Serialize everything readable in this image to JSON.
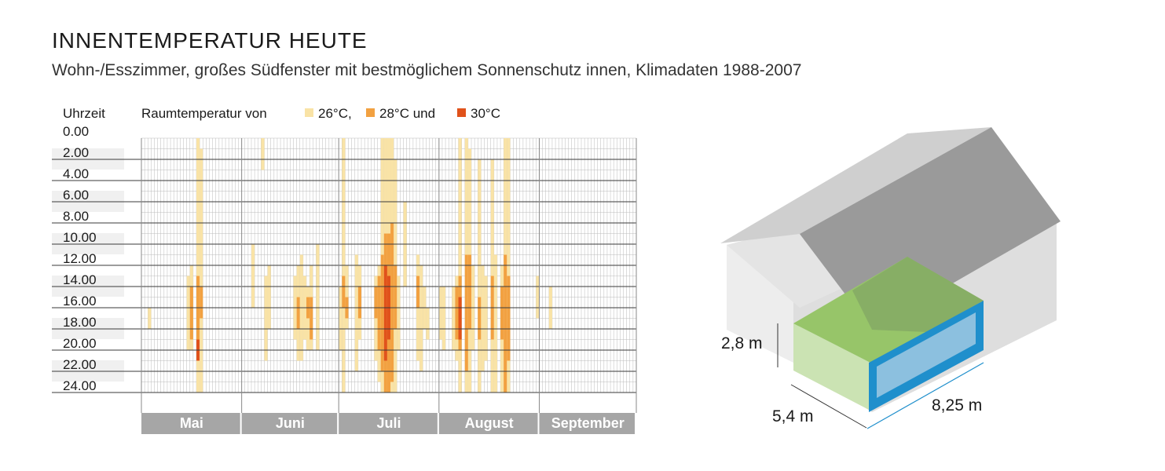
{
  "title": "INNENTEMPERATUR HEUTE",
  "subtitle": "Wohn-/Esszimmer, großes Südfenster mit bestmöglichem Sonnenschutz innen, Klimadaten 1988-2007",
  "colors": {
    "t26": "#f9e3a6",
    "t28": "#f2a141",
    "t30": "#e0521b",
    "month_bar": "#a6a6a6",
    "grid_minor": "#bbbbbb",
    "grid_major": "#3a3a3a"
  },
  "chart_data": {
    "type": "heatmap",
    "y_axis_label": "Uhrzeit",
    "y_ticks": [
      "0.00",
      "2.00",
      "4.00",
      "6.00",
      "8.00",
      "10.00",
      "12.00",
      "14.00",
      "16.00",
      "18.00",
      "20.00",
      "22.00",
      "24.00"
    ],
    "legend": {
      "prefix": "Raumtemperatur von",
      "items": [
        {
          "label": "26°C,",
          "color_key": "t26"
        },
        {
          "label": "28°C und",
          "color_key": "t28"
        },
        {
          "label": "30°C",
          "color_key": "t30"
        }
      ]
    },
    "months": [
      {
        "name": "Mai",
        "days": 31
      },
      {
        "name": "Juni",
        "days": 30
      },
      {
        "name": "Juli",
        "days": 31
      },
      {
        "name": "August",
        "days": 31
      },
      {
        "name": "September",
        "days": 30
      }
    ],
    "levels": {
      "1": "26°C",
      "2": "28°C",
      "3": "30°C"
    },
    "cells": [
      [
        2,
        16,
        18,
        1
      ],
      [
        14,
        13,
        20,
        1
      ],
      [
        15,
        12,
        20,
        1
      ],
      [
        15,
        14,
        19,
        2
      ],
      [
        17,
        0,
        24,
        1
      ],
      [
        17,
        13,
        21,
        2
      ],
      [
        17,
        19,
        21,
        3
      ],
      [
        18,
        1,
        24,
        1
      ],
      [
        18,
        14,
        17,
        2
      ],
      [
        34,
        10,
        16,
        1
      ],
      [
        37,
        0,
        3,
        1
      ],
      [
        38,
        13,
        21,
        1
      ],
      [
        39,
        12,
        18,
        1
      ],
      [
        47,
        13,
        19,
        1
      ],
      [
        48,
        12,
        21,
        1
      ],
      [
        48,
        15,
        18,
        2
      ],
      [
        49,
        11,
        21,
        1
      ],
      [
        50,
        13,
        19,
        1
      ],
      [
        51,
        14,
        20,
        1
      ],
      [
        51,
        15,
        17,
        2
      ],
      [
        52,
        12,
        20,
        1
      ],
      [
        52,
        15,
        19,
        2
      ],
      [
        54,
        10,
        20,
        1
      ],
      [
        61,
        14,
        20,
        1
      ],
      [
        62,
        0,
        24,
        1
      ],
      [
        62,
        13,
        16,
        2
      ],
      [
        63,
        12,
        18,
        1
      ],
      [
        63,
        15,
        17,
        2
      ],
      [
        66,
        11,
        22,
        1
      ],
      [
        67,
        12,
        19,
        1
      ],
      [
        67,
        14,
        17,
        2
      ],
      [
        72,
        13,
        21,
        1
      ],
      [
        72,
        14,
        17,
        2
      ],
      [
        73,
        12,
        23,
        1
      ],
      [
        73,
        13,
        20,
        2
      ],
      [
        74,
        0,
        24,
        1
      ],
      [
        74,
        11,
        22,
        2
      ],
      [
        75,
        0,
        24,
        1
      ],
      [
        75,
        9,
        24,
        2
      ],
      [
        75,
        12,
        21,
        3
      ],
      [
        76,
        0,
        24,
        1
      ],
      [
        76,
        9,
        24,
        2
      ],
      [
        76,
        13,
        19,
        3
      ],
      [
        77,
        0,
        24,
        1
      ],
      [
        77,
        8,
        23,
        2
      ],
      [
        78,
        2,
        24,
        1
      ],
      [
        78,
        12,
        18,
        2
      ],
      [
        79,
        13,
        20,
        1
      ],
      [
        81,
        6,
        14,
        1
      ],
      [
        85,
        11,
        21,
        1
      ],
      [
        85,
        13,
        16,
        2
      ],
      [
        86,
        12,
        22,
        1
      ],
      [
        87,
        14,
        18,
        1
      ],
      [
        88,
        16,
        19,
        1
      ],
      [
        92,
        14,
        19,
        1
      ],
      [
        93,
        14,
        20,
        1
      ],
      [
        96,
        14,
        20,
        1
      ],
      [
        97,
        13,
        21,
        1
      ],
      [
        97,
        14,
        19,
        2
      ],
      [
        98,
        0,
        24,
        1
      ],
      [
        98,
        13,
        20,
        2
      ],
      [
        98,
        15,
        19,
        3
      ],
      [
        100,
        0,
        24,
        1
      ],
      [
        100,
        11,
        22,
        2
      ],
      [
        101,
        1,
        24,
        1
      ],
      [
        101,
        11,
        18,
        2
      ],
      [
        102,
        12,
        20,
        1
      ],
      [
        104,
        2,
        24,
        1
      ],
      [
        104,
        15,
        19,
        2
      ],
      [
        105,
        12,
        22,
        1
      ],
      [
        106,
        13,
        21,
        1
      ],
      [
        108,
        2,
        24,
        1
      ],
      [
        108,
        13,
        19,
        2
      ],
      [
        109,
        11,
        24,
        1
      ],
      [
        111,
        12,
        24,
        1
      ],
      [
        111,
        14,
        19,
        2
      ],
      [
        112,
        0,
        24,
        1
      ],
      [
        112,
        11,
        24,
        2
      ],
      [
        113,
        0,
        24,
        1
      ],
      [
        113,
        13,
        21,
        2
      ],
      [
        122,
        13,
        17,
        1
      ],
      [
        126,
        14,
        18,
        1
      ]
    ]
  },
  "house": {
    "height_label": "2,8 m",
    "depth_label": "5,4 m",
    "width_label": "8,25 m"
  }
}
